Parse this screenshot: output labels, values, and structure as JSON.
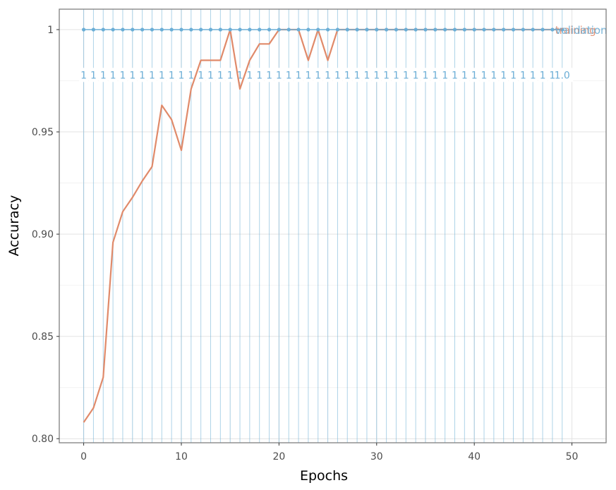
{
  "chart_data": {
    "type": "line",
    "xlabel": "Epochs",
    "ylabel": "Accuracy",
    "xlim": [
      -2.5,
      53.5
    ],
    "ylim": [
      0.798,
      1.01
    ],
    "x_ticks": [
      0,
      10,
      20,
      30,
      40,
      50
    ],
    "y_ticks": [
      0.8,
      0.85,
      0.9,
      0.95,
      1.0
    ],
    "y_tick_labels": [
      "0.80",
      "0.85",
      "0.90",
      "0.95",
      "1"
    ],
    "grid": true,
    "legend": "direct end labels at right",
    "series": [
      {
        "name": "training",
        "color": "#e08a6a",
        "x": [
          0,
          1,
          2,
          3,
          4,
          5,
          6,
          7,
          8,
          9,
          10,
          11,
          12,
          13,
          14,
          15,
          16,
          17,
          18,
          19,
          20,
          21,
          22,
          23,
          24,
          25,
          26,
          27,
          28,
          29,
          30,
          31,
          32,
          33,
          34,
          35,
          36,
          37,
          38,
          39,
          40,
          41,
          42,
          43,
          44,
          45,
          46,
          47,
          48,
          49
        ],
        "values": [
          0.808,
          0.815,
          0.83,
          0.896,
          0.911,
          0.918,
          0.926,
          0.933,
          0.963,
          0.956,
          0.941,
          0.971,
          0.985,
          0.985,
          0.985,
          1.0,
          0.971,
          0.985,
          0.993,
          0.993,
          1.0,
          1.0,
          1.0,
          0.985,
          1.0,
          0.985,
          1.0,
          1.0,
          1.0,
          1.0,
          1.0,
          1.0,
          1.0,
          1.0,
          1.0,
          1.0,
          1.0,
          1.0,
          1.0,
          1.0,
          1.0,
          1.0,
          1.0,
          1.0,
          1.0,
          1.0,
          1.0,
          1.0,
          1.0,
          1.0
        ]
      },
      {
        "name": "validation",
        "color": "#6baed6",
        "x": [
          0,
          1,
          2,
          3,
          4,
          5,
          6,
          7,
          8,
          9,
          10,
          11,
          12,
          13,
          14,
          15,
          16,
          17,
          18,
          19,
          20,
          21,
          22,
          23,
          24,
          25,
          26,
          27,
          28,
          29,
          30,
          31,
          32,
          33,
          34,
          35,
          36,
          37,
          38,
          39,
          40,
          41,
          42,
          43,
          44,
          45,
          46,
          47,
          48,
          49
        ],
        "values": [
          1,
          1,
          1,
          1,
          1,
          1,
          1,
          1,
          1,
          1,
          1,
          1,
          1,
          1,
          1,
          1,
          1,
          1,
          1,
          1,
          1,
          1,
          1,
          1,
          1,
          1,
          1,
          1,
          1,
          1,
          1,
          1,
          1,
          1,
          1,
          1,
          1,
          1,
          1,
          1,
          1,
          1,
          1,
          1,
          1,
          1,
          1,
          1,
          1,
          1
        ],
        "data_labels": [
          "1",
          "1",
          "1",
          "1",
          "1",
          "1",
          "1",
          "1",
          "1",
          "1",
          "1",
          "1",
          "1",
          "1",
          "1",
          "1",
          "1",
          "1",
          "1",
          "1",
          "1",
          "1",
          "1",
          "1",
          "1",
          "1",
          "1",
          "1",
          "1",
          "1",
          "1",
          "1",
          "1",
          "1",
          "1",
          "1",
          "1",
          "1",
          "1",
          "1",
          "1",
          "1",
          "1",
          "1",
          "1",
          "1",
          "1",
          "1",
          "1",
          "1.0"
        ]
      }
    ]
  }
}
